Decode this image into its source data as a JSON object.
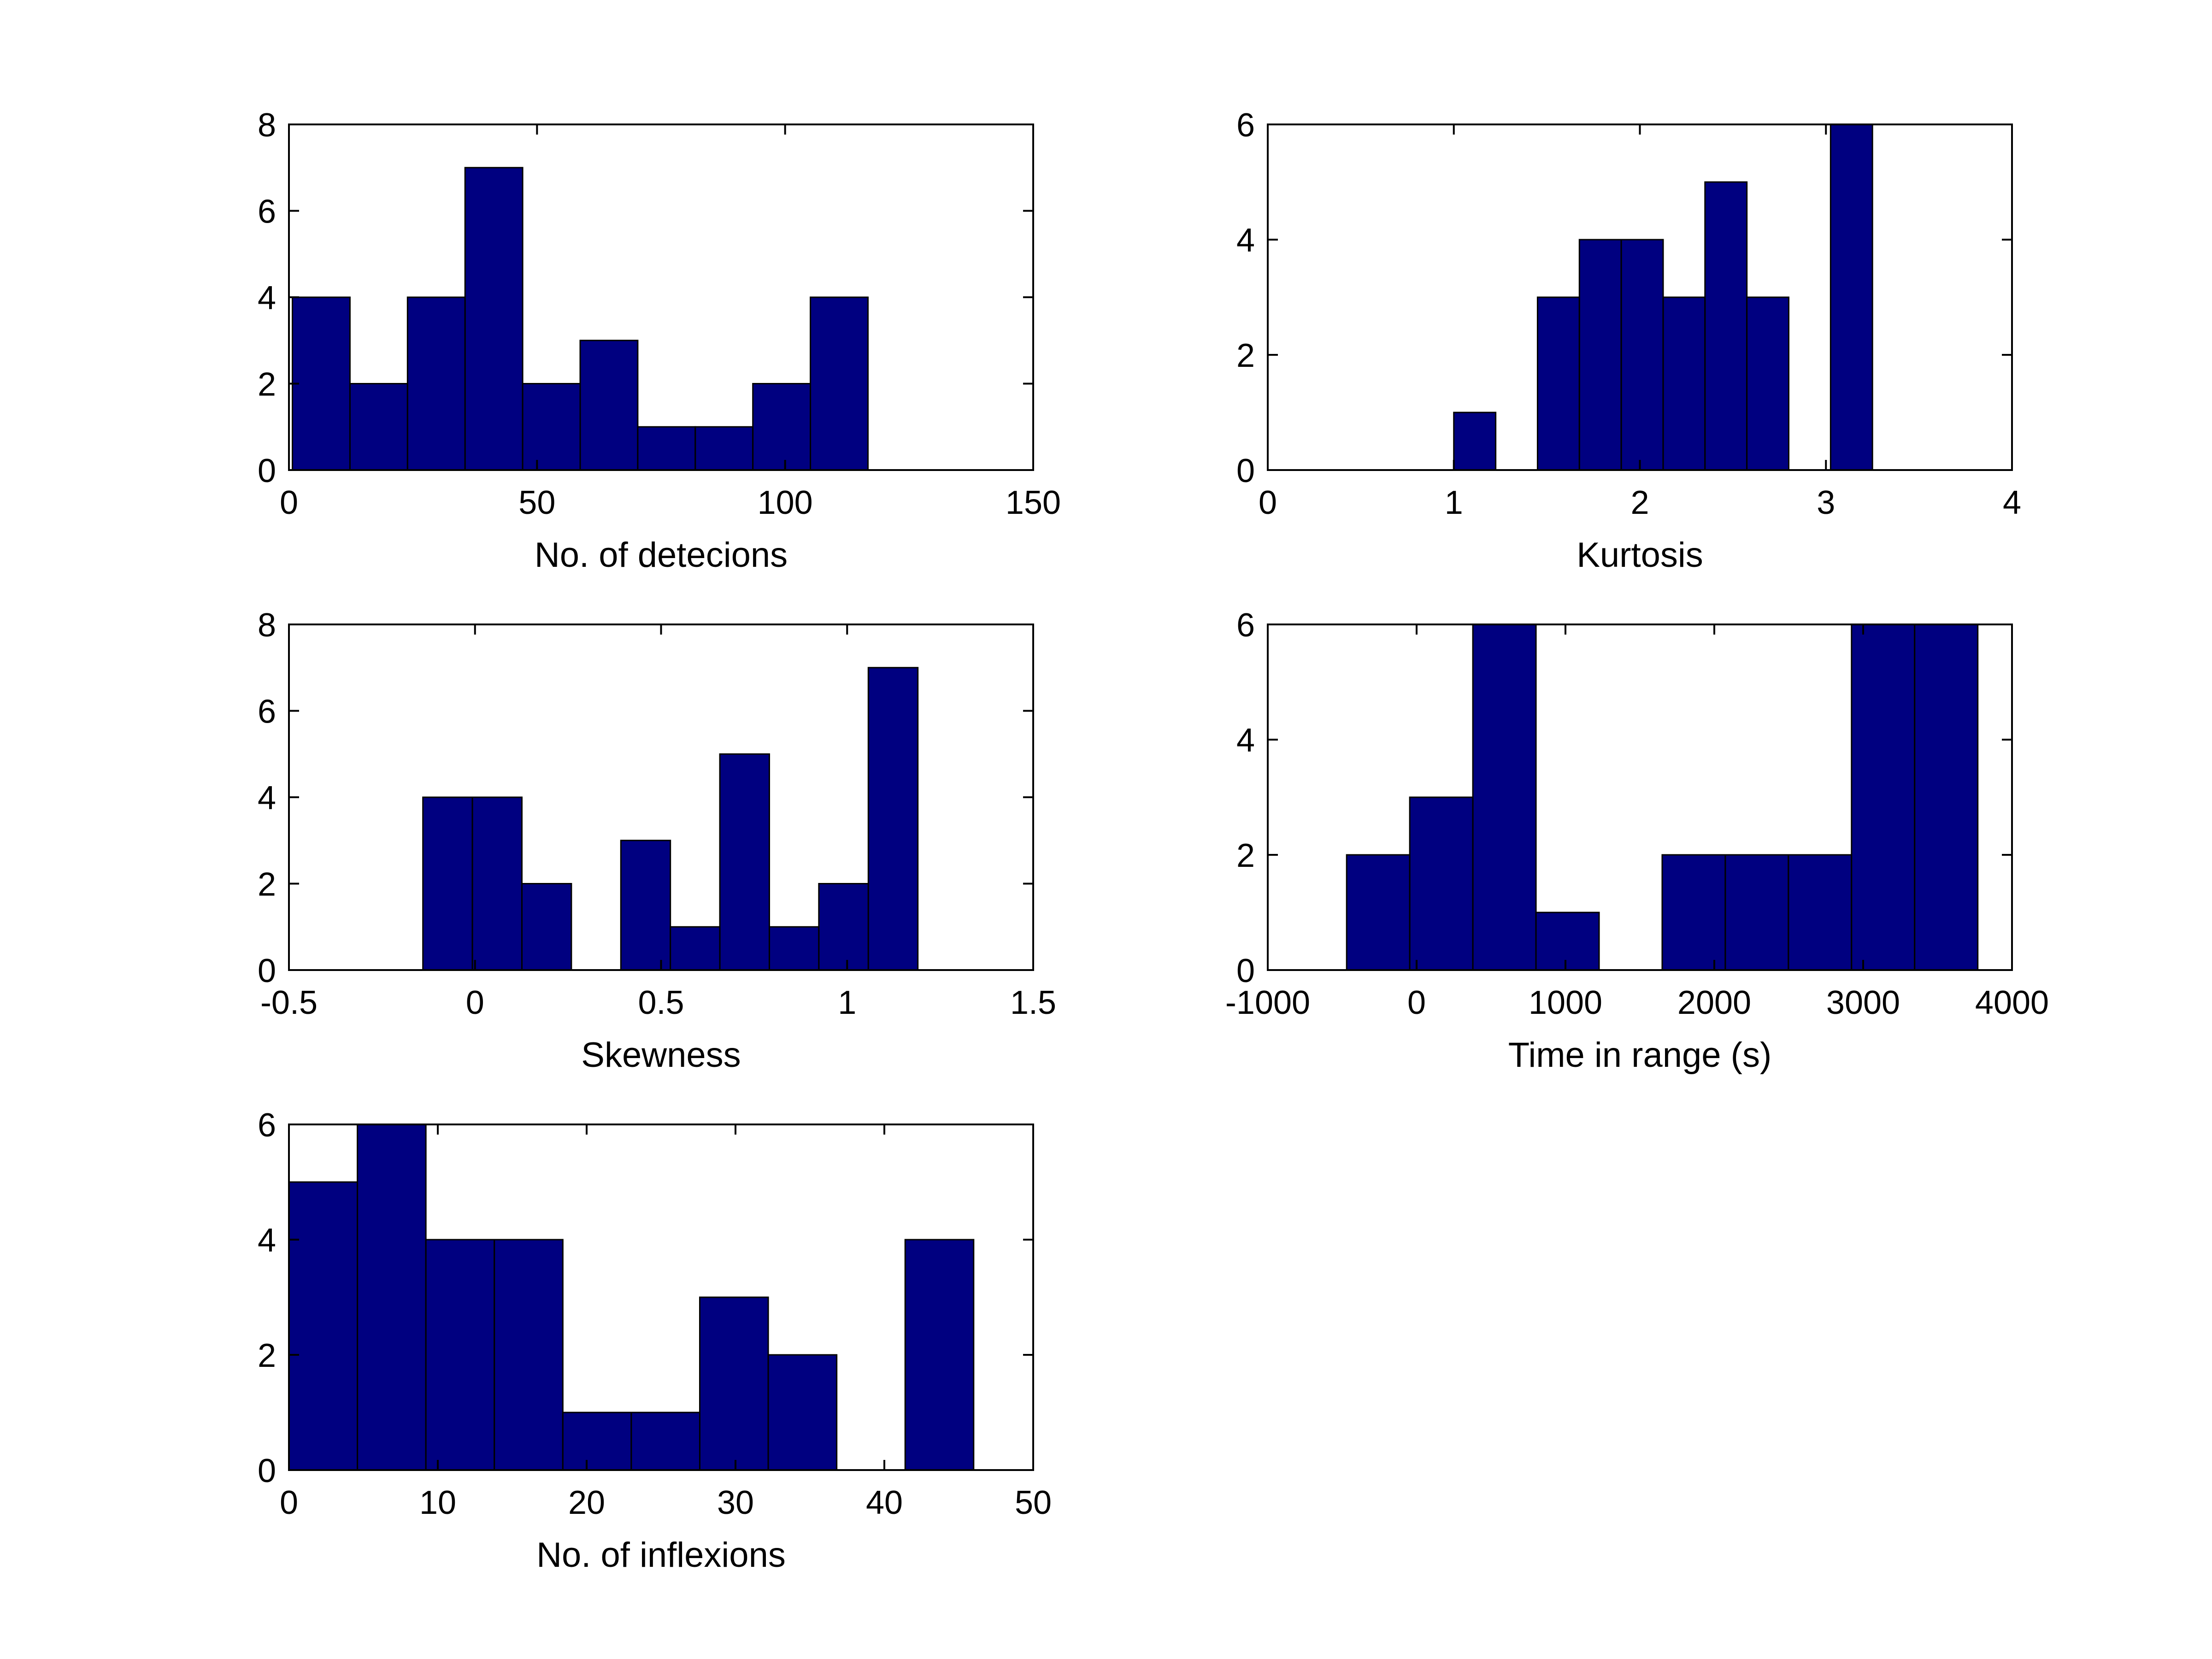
{
  "style": {
    "bar_color": "#000080",
    "edge_color": "#000000",
    "background": "#ffffff"
  },
  "chart_data": [
    {
      "id": "detections",
      "type": "bar",
      "xlabel": "No. of detecions",
      "ylabel": "",
      "xlim": [
        0,
        150
      ],
      "ylim": [
        0,
        8
      ],
      "xticks": [
        0,
        50,
        100,
        150
      ],
      "yticks": [
        0,
        2,
        4,
        6,
        8
      ],
      "xtick_labels": [
        "0",
        "50",
        "100",
        "150"
      ],
      "ytick_labels": [
        "0",
        "2",
        "4",
        "6",
        "8"
      ],
      "bin_edges": [
        0.7,
        12.3,
        23.9,
        35.5,
        47.1,
        58.7,
        70.3,
        81.9,
        93.5,
        105.1,
        116.7
      ],
      "counts": [
        4,
        2,
        4,
        7,
        2,
        3,
        1,
        1,
        2,
        4
      ]
    },
    {
      "id": "kurtosis",
      "type": "bar",
      "xlabel": "Kurtosis",
      "ylabel": "",
      "xlim": [
        0,
        4
      ],
      "ylim": [
        0,
        6
      ],
      "xticks": [
        0,
        1,
        2,
        3,
        4
      ],
      "yticks": [
        0,
        2,
        4,
        6
      ],
      "xtick_labels": [
        "0",
        "1",
        "2",
        "3",
        "4"
      ],
      "ytick_labels": [
        "0",
        "2",
        "4",
        "6"
      ],
      "bin_edges": [
        1.0,
        1.225,
        1.45,
        1.675,
        1.9,
        2.125,
        2.35,
        2.575,
        2.8,
        3.025,
        3.25
      ],
      "counts": [
        1,
        0,
        3,
        4,
        4,
        3,
        5,
        3,
        0,
        6
      ]
    },
    {
      "id": "skewness",
      "type": "bar",
      "xlabel": "Skewness",
      "ylabel": "",
      "xlim": [
        -0.5,
        1.5
      ],
      "ylim": [
        0,
        8
      ],
      "xticks": [
        -0.5,
        0,
        0.5,
        1,
        1.5
      ],
      "yticks": [
        0,
        2,
        4,
        6,
        8
      ],
      "xtick_labels": [
        "-0.5",
        "0",
        "0.5",
        "1",
        "1.5"
      ],
      "ytick_labels": [
        "0",
        "2",
        "4",
        "6",
        "8"
      ],
      "bin_edges": [
        -0.14,
        -0.007,
        0.126,
        0.259,
        0.392,
        0.525,
        0.658,
        0.791,
        0.924,
        1.057,
        1.19
      ],
      "counts": [
        4,
        4,
        2,
        0,
        3,
        1,
        5,
        1,
        2,
        7
      ]
    },
    {
      "id": "time-in-range",
      "type": "bar",
      "xlabel": "Time in range (s)",
      "ylabel": "",
      "xlim": [
        -1000,
        4000
      ],
      "ylim": [
        0,
        6
      ],
      "xticks": [
        -1000,
        0,
        1000,
        2000,
        3000,
        4000
      ],
      "yticks": [
        0,
        2,
        4,
        6
      ],
      "xtick_labels": [
        "-1000",
        "0",
        "1000",
        "2000",
        "3000",
        "4000"
      ],
      "ytick_labels": [
        "0",
        "2",
        "4",
        "6"
      ],
      "bin_edges": [
        -470,
        -46,
        378,
        802,
        1226,
        1650,
        2074,
        2498,
        2922,
        3346,
        3770
      ],
      "counts": [
        2,
        3,
        6,
        1,
        0,
        2,
        2,
        2,
        6,
        6
      ]
    },
    {
      "id": "inflexions",
      "type": "bar",
      "xlabel": "No. of inflexions",
      "ylabel": "",
      "xlim": [
        0,
        50
      ],
      "ylim": [
        0,
        6
      ],
      "xticks": [
        0,
        10,
        20,
        30,
        40,
        50
      ],
      "yticks": [
        0,
        2,
        4,
        6
      ],
      "xtick_labels": [
        "0",
        "10",
        "20",
        "30",
        "40",
        "50"
      ],
      "ytick_labels": [
        "0",
        "2",
        "4",
        "6"
      ],
      "bin_edges": [
        0,
        4.6,
        9.2,
        13.8,
        18.4,
        23.0,
        27.6,
        32.2,
        36.8,
        41.4,
        46.0
      ],
      "counts": [
        5,
        6,
        4,
        4,
        1,
        1,
        3,
        2,
        0,
        4
      ]
    }
  ]
}
